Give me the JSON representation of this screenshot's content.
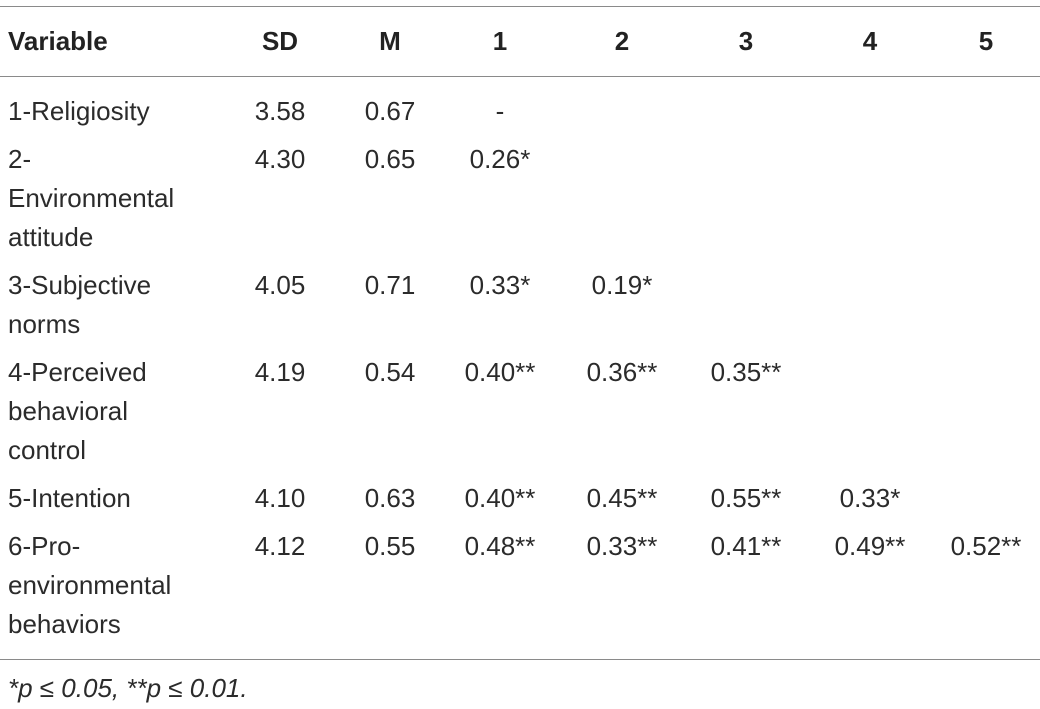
{
  "header": {
    "columns": [
      "Variable",
      "SD",
      "M",
      "1",
      "2",
      "3",
      "4",
      "5"
    ]
  },
  "table": {
    "rows": [
      [
        "1-Religiosity",
        "3.58",
        "0.67",
        "-"
      ],
      [
        "2-Environmental attitude",
        "4.30",
        "0.65",
        "0.26*"
      ],
      [
        "3-Subjective norms",
        "4.05",
        "0.71",
        "0.33*",
        "0.19*"
      ],
      [
        "4-Perceived behavioral control",
        "4.19",
        "0.54",
        "0.40**",
        "0.36**",
        "0.35**"
      ],
      [
        "5-Intention",
        "4.10",
        "0.63",
        "0.40**",
        "0.45**",
        "0.55**",
        "0.33*"
      ],
      [
        "6-Pro-environmental behaviors",
        "4.12",
        "0.55",
        "0.48**",
        "0.33**",
        "0.41**",
        "0.49**",
        "0.52**"
      ]
    ]
  },
  "footnote": "*p ≤ 0.05, **p ≤ 0.01."
}
